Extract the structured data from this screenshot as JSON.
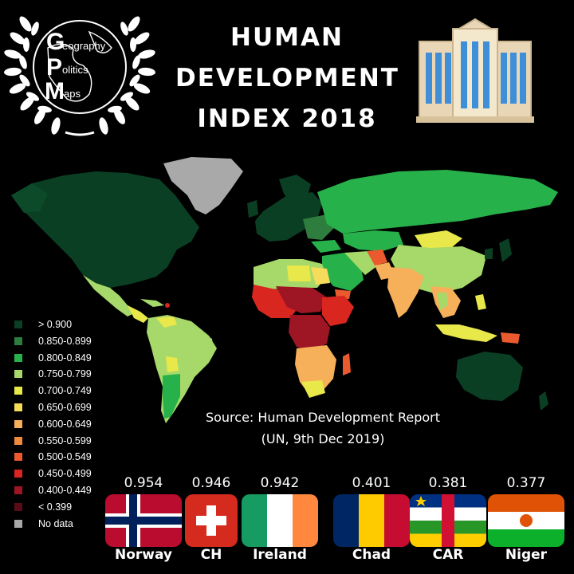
{
  "logo": {
    "letters": [
      "G",
      "P",
      "M"
    ],
    "words": [
      "eography",
      "olitics",
      "aps"
    ]
  },
  "title": {
    "lines": [
      "HUMAN",
      "DEVELOPMENT",
      "INDEX 2018"
    ]
  },
  "legend": [
    {
      "label": "> 0.900",
      "color": "#0b3f23"
    },
    {
      "label": "0.850-0.899",
      "color": "#2e7d3f"
    },
    {
      "label": "0.800-0.849",
      "color": "#27b14a"
    },
    {
      "label": "0.750-0.799",
      "color": "#a6d96a"
    },
    {
      "label": "0.700-0.749",
      "color": "#e8e84a"
    },
    {
      "label": "0.650-0.699",
      "color": "#f7dc5c"
    },
    {
      "label": "0.600-0.649",
      "color": "#f6b05a"
    },
    {
      "label": "0.550-0.599",
      "color": "#f28a3c"
    },
    {
      "label": "0.500-0.549",
      "color": "#ea5a2e"
    },
    {
      "label": "0.450-0.499",
      "color": "#d9261f"
    },
    {
      "label": "0.400-0.449",
      "color": "#9e1524"
    },
    {
      "label": "< 0.399",
      "color": "#5a0b18"
    },
    {
      "label": "No data",
      "color": "#a9a9a9"
    }
  ],
  "source": {
    "line1": "Source: Human Development Report",
    "line2": "(UN, 9th Dec 2019)"
  },
  "countries": [
    {
      "name": "Norway",
      "value": "0.954",
      "flag": "norway-flag-icon"
    },
    {
      "name": "CH",
      "value": "0.946",
      "flag": "switzerland-flag-icon"
    },
    {
      "name": "Ireland",
      "value": "0.942",
      "flag": "ireland-flag-icon"
    },
    {
      "name": "Chad",
      "value": "0.401",
      "flag": "chad-flag-icon"
    },
    {
      "name": "CAR",
      "value": "0.381",
      "flag": "car-flag-icon"
    },
    {
      "name": "Niger",
      "value": "0.377",
      "flag": "niger-flag-icon"
    }
  ]
}
